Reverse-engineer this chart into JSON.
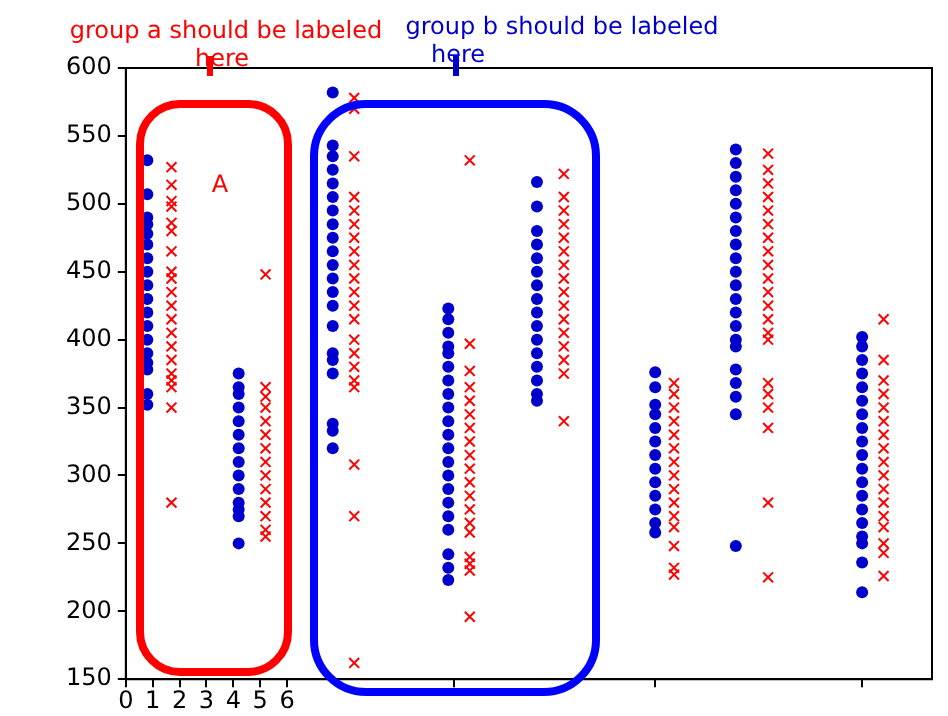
{
  "chart_data": {
    "type": "scatter",
    "grid": false,
    "legend": false,
    "xlim": [
      0,
      30
    ],
    "ylim": [
      150,
      600
    ],
    "xticks": [
      0,
      1,
      2,
      3,
      4,
      5,
      6,
      {
        "value": 12.2,
        "label": null
      },
      {
        "value": 19.7,
        "label": null
      },
      {
        "value": 27.4,
        "label": null
      }
    ],
    "yticks": [
      150,
      200,
      250,
      300,
      350,
      400,
      450,
      500,
      550,
      600
    ],
    "annotations": [
      "group a should be labeled\nhere",
      "group b should be labeled\nhere",
      "A"
    ],
    "series": [
      {
        "color": "#0000cc",
        "marker": "circle",
        "x": [
          0.8,
          0.8,
          0.8,
          0.8,
          0.8,
          0.8,
          0.8,
          0.8,
          0.8,
          0.8,
          0.8,
          0.8,
          0.8,
          0.8,
          0.8,
          0.8,
          0.8,
          0.8,
          4.2,
          4.2,
          4.2,
          4.2,
          4.2,
          4.2,
          4.2,
          4.2,
          4.2,
          4.2,
          4.2,
          4.2,
          4.2,
          4.2,
          7.7,
          7.7,
          7.7,
          7.7,
          7.7,
          7.7,
          7.7,
          7.7,
          7.7,
          7.7,
          7.7,
          7.7,
          7.7,
          7.7,
          7.7,
          7.7,
          7.7,
          7.7,
          7.7,
          7.7,
          7.7,
          12.0,
          12.0,
          12.0,
          12.0,
          12.0,
          12.0,
          12.0,
          12.0,
          12.0,
          12.0,
          12.0,
          12.0,
          12.0,
          12.0,
          12.0,
          12.0,
          12.0,
          12.0,
          12.0,
          12.0,
          12.0,
          15.3,
          15.3,
          15.3,
          15.3,
          15.3,
          15.3,
          15.3,
          15.3,
          15.3,
          15.3,
          15.3,
          15.3,
          15.3,
          15.3,
          15.3,
          15.3,
          19.7,
          19.7,
          19.7,
          19.7,
          19.7,
          19.7,
          19.7,
          19.7,
          19.7,
          19.7,
          19.7,
          19.7,
          19.7,
          22.7,
          22.7,
          22.7,
          22.7,
          22.7,
          22.7,
          22.7,
          22.7,
          22.7,
          22.7,
          22.7,
          22.7,
          22.7,
          22.7,
          22.7,
          22.7,
          22.7,
          22.7,
          22.7,
          22.7,
          22.7,
          27.4,
          27.4,
          27.4,
          27.4,
          27.4,
          27.4,
          27.4,
          27.4,
          27.4,
          27.4,
          27.4,
          27.4,
          27.4,
          27.4,
          27.4,
          27.4,
          27.4,
          27.4,
          27.4
        ],
        "values": [
          532,
          507,
          490,
          485,
          478,
          470,
          460,
          450,
          440,
          430,
          420,
          410,
          400,
          390,
          383,
          378,
          360,
          352,
          375,
          365,
          360,
          350,
          340,
          330,
          320,
          310,
          300,
          290,
          280,
          275,
          270,
          250,
          582,
          543,
          535,
          525,
          515,
          505,
          495,
          485,
          475,
          465,
          455,
          445,
          435,
          425,
          410,
          390,
          385,
          375,
          338,
          333,
          320,
          423,
          415,
          405,
          395,
          390,
          380,
          370,
          360,
          350,
          340,
          330,
          320,
          310,
          300,
          290,
          280,
          270,
          260,
          242,
          232,
          223,
          516,
          498,
          480,
          470,
          460,
          450,
          440,
          430,
          420,
          410,
          400,
          390,
          380,
          370,
          360,
          355,
          376,
          365,
          352,
          345,
          335,
          325,
          315,
          305,
          295,
          285,
          275,
          265,
          258,
          540,
          530,
          520,
          510,
          500,
          490,
          480,
          470,
          460,
          450,
          440,
          430,
          420,
          410,
          400,
          395,
          378,
          368,
          358,
          345,
          248,
          402,
          395,
          385,
          375,
          365,
          355,
          345,
          335,
          325,
          315,
          305,
          295,
          285,
          275,
          265,
          255,
          250,
          236,
          214
        ]
      },
      {
        "color": "#ff0000",
        "marker": "cross",
        "x": [
          1.7,
          1.7,
          1.7,
          1.7,
          1.7,
          1.7,
          1.7,
          1.7,
          1.7,
          1.7,
          1.7,
          1.7,
          1.7,
          1.7,
          1.7,
          1.7,
          1.7,
          1.7,
          1.7,
          1.7,
          5.2,
          5.2,
          5.2,
          5.2,
          5.2,
          5.2,
          5.2,
          5.2,
          5.2,
          5.2,
          5.2,
          5.2,
          5.2,
          5.2,
          8.5,
          8.5,
          8.5,
          8.5,
          8.5,
          8.5,
          8.5,
          8.5,
          8.5,
          8.5,
          8.5,
          8.5,
          8.5,
          8.5,
          8.5,
          8.5,
          8.5,
          8.5,
          8.5,
          8.5,
          8.5,
          12.8,
          12.8,
          12.8,
          12.8,
          12.8,
          12.8,
          12.8,
          12.8,
          12.8,
          12.8,
          12.8,
          12.8,
          12.8,
          12.8,
          12.8,
          12.8,
          12.8,
          12.8,
          12.8,
          16.3,
          16.3,
          16.3,
          16.3,
          16.3,
          16.3,
          16.3,
          16.3,
          16.3,
          16.3,
          16.3,
          16.3,
          16.3,
          16.3,
          16.3,
          16.3,
          20.4,
          20.4,
          20.4,
          20.4,
          20.4,
          20.4,
          20.4,
          20.4,
          20.4,
          20.4,
          20.4,
          20.4,
          20.4,
          20.4,
          20.4,
          23.9,
          23.9,
          23.9,
          23.9,
          23.9,
          23.9,
          23.9,
          23.9,
          23.9,
          23.9,
          23.9,
          23.9,
          23.9,
          23.9,
          23.9,
          23.9,
          23.9,
          23.9,
          23.9,
          23.9,
          23.9,
          28.2,
          28.2,
          28.2,
          28.2,
          28.2,
          28.2,
          28.2,
          28.2,
          28.2,
          28.2,
          28.2,
          28.2,
          28.2,
          28.2,
          28.2,
          28.2,
          28.2
        ],
        "values": [
          527,
          514,
          502,
          498,
          486,
          480,
          465,
          450,
          445,
          435,
          425,
          415,
          405,
          395,
          385,
          375,
          370,
          365,
          350,
          280,
          448,
          365,
          358,
          350,
          340,
          330,
          320,
          310,
          300,
          290,
          280,
          270,
          260,
          255,
          578,
          570,
          535,
          505,
          495,
          485,
          475,
          465,
          455,
          445,
          435,
          425,
          415,
          400,
          390,
          380,
          370,
          365,
          308,
          270,
          162,
          532,
          397,
          377,
          365,
          355,
          345,
          335,
          325,
          315,
          305,
          295,
          285,
          275,
          265,
          258,
          240,
          235,
          230,
          196,
          522,
          505,
          495,
          485,
          475,
          465,
          455,
          445,
          435,
          425,
          415,
          405,
          395,
          385,
          375,
          340,
          368,
          360,
          350,
          340,
          330,
          320,
          310,
          300,
          290,
          280,
          270,
          262,
          248,
          232,
          227,
          537,
          525,
          515,
          505,
          495,
          485,
          475,
          465,
          455,
          445,
          435,
          425,
          415,
          405,
          400,
          368,
          360,
          350,
          335,
          280,
          225,
          415,
          385,
          370,
          360,
          350,
          340,
          330,
          320,
          310,
          300,
          290,
          280,
          270,
          262,
          250,
          243,
          226
        ]
      }
    ]
  }
}
